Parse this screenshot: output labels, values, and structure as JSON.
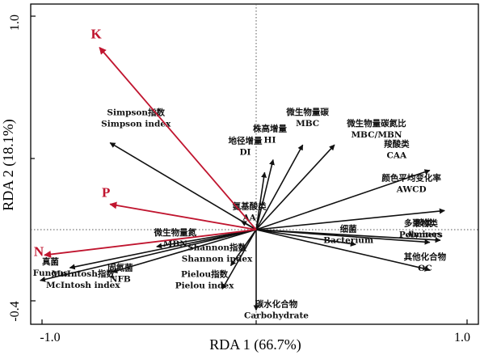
{
  "chart_data": {
    "type": "scatter",
    "subtype": "rda-biplot",
    "xlabel": "RDA 1 (66.7%)",
    "ylabel": "RDA 2 (18.1%)",
    "xlim": [
      -1.05,
      1.05
    ],
    "ylim": [
      -0.5,
      1.05
    ],
    "x_ticks": [
      "-1.0",
      "1.0"
    ],
    "y_ticks": [
      "1.0",
      "-0.4"
    ],
    "reference_lines": "dotted lines at x = 0 and y = 0",
    "colors": {
      "environmental": "#c0152f",
      "response": "#111111",
      "frame": "#000000"
    },
    "environmental_vectors": [
      {
        "label": "K",
        "x": -0.74,
        "y": 0.86
      },
      {
        "label": "P",
        "x": -0.69,
        "y": 0.12
      },
      {
        "label": "N",
        "x": -1.0,
        "y": -0.12
      }
    ],
    "response_vectors": [
      {
        "label_cn": "Simpson指数",
        "label_en": "Simpson index",
        "x": -0.69,
        "y": 0.41
      },
      {
        "label_cn": "微生物量碳",
        "label_en": "MBC",
        "x": 0.22,
        "y": 0.4
      },
      {
        "label_cn": "微生物量碳氮比",
        "label_en": "MBC/MBN",
        "x": 0.37,
        "y": 0.4
      },
      {
        "label_cn": "株高增量",
        "label_en": "HI",
        "x": 0.08,
        "y": 0.33
      },
      {
        "label_cn": "地径增量",
        "label_en": "DI",
        "x": 0.04,
        "y": 0.27
      },
      {
        "label_cn": "羧酸类",
        "label_en": "CAA",
        "x": 0.82,
        "y": 0.28
      },
      {
        "label_cn": "颜色平均变化率",
        "label_en": "AWCD",
        "x": 0.89,
        "y": 0.09
      },
      {
        "label_cn": "氨基酸类",
        "label_en": "AA",
        "x": -0.07,
        "y": 0.04
      },
      {
        "label_cn": "胺类",
        "label_en": "Amines",
        "x": 0.87,
        "y": -0.05
      },
      {
        "label_cn": "多聚物类",
        "label_en": "Polymers",
        "x": 0.82,
        "y": -0.06
      },
      {
        "label_cn": "细菌",
        "label_en": "Bacterium",
        "x": 0.47,
        "y": -0.07
      },
      {
        "label_cn": "其他化合物",
        "label_en": "OC",
        "x": 0.82,
        "y": -0.19
      },
      {
        "label_cn": "微生物量氮",
        "label_en": "MBN",
        "x": -0.47,
        "y": -0.08
      },
      {
        "label_cn": "Shannon指数",
        "label_en": "Shannon index",
        "x": -0.12,
        "y": -0.17
      },
      {
        "label_cn": "真菌",
        "label_en": "Fungus",
        "x": -0.88,
        "y": -0.18
      },
      {
        "label_cn": "固氮菌",
        "label_en": "NFB",
        "x": -0.68,
        "y": -0.2
      },
      {
        "label_cn": "MnIntosh指数",
        "label_en": "McIntosh index",
        "x": -1.02,
        "y": -0.24
      },
      {
        "label_cn": "Pielou指数",
        "label_en": "Pielou index",
        "x": -0.16,
        "y": -0.28
      },
      {
        "label_cn": "碳水化合物",
        "label_en": "Carbohydrate",
        "x": 0.0,
        "y": -0.38
      }
    ]
  }
}
